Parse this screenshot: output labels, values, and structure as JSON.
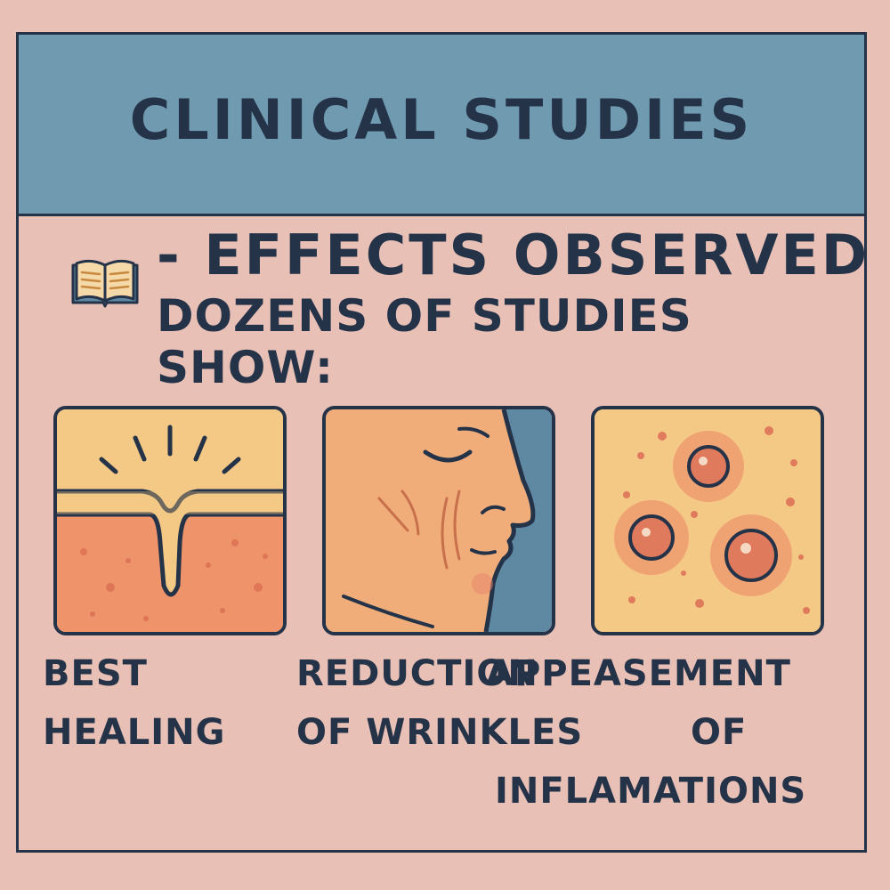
{
  "banner": {
    "title": "CLINICAL STUDIES"
  },
  "header": {
    "icon": "open-book-icon",
    "line1": "- EFFECTS OBSERVED",
    "line2": "DOZENS OF STUDIES SHOW:"
  },
  "panels": [
    {
      "icon": "skin-healing-illustration",
      "caption_top": "BEST",
      "caption_bottom": "HEALING"
    },
    {
      "icon": "face-wrinkles-illustration",
      "caption_top": "REDUCTION",
      "caption_bottom": "OF WRINKLES"
    },
    {
      "icon": "inflammation-spots-illustration",
      "caption_top": "APPEASEMENT",
      "caption_mid": "OF",
      "caption_bottom": "INFLAMATIONS"
    }
  ],
  "colors": {
    "background": "#e8c0b6",
    "banner": "#6f9aaf",
    "ink": "#253349",
    "skin_light": "#f3c07f",
    "skin_dark": "#eb8f68"
  }
}
